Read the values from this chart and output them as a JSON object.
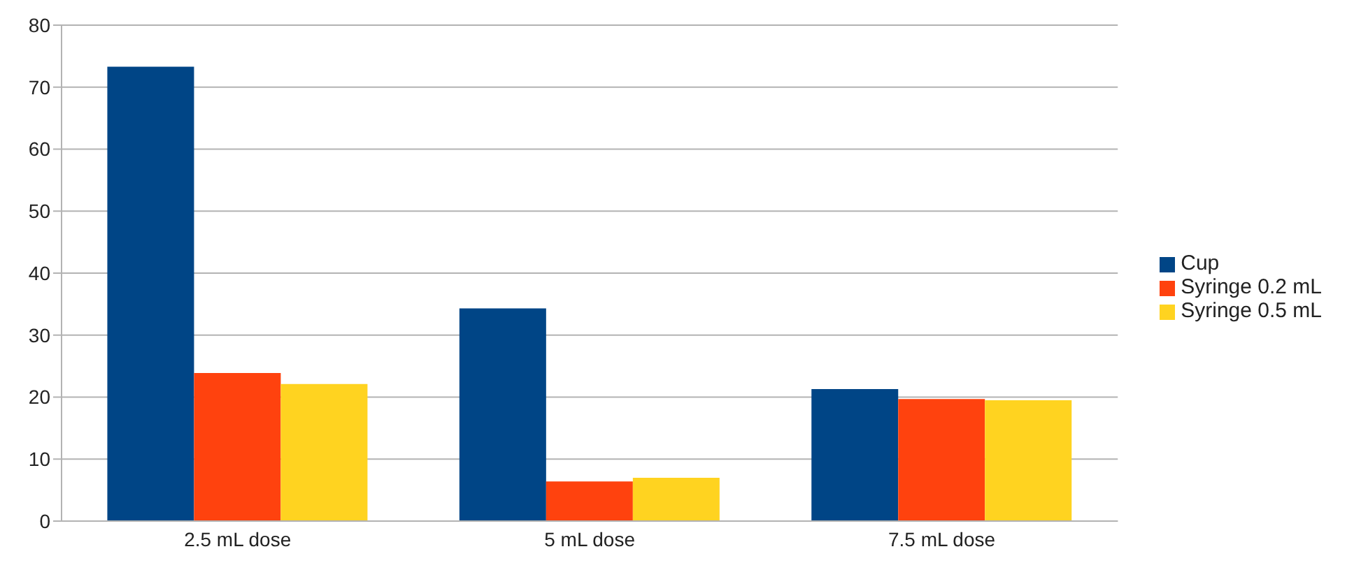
{
  "chart_data": {
    "type": "bar",
    "categories": [
      "2.5 mL dose",
      "5 mL dose",
      "7.5 mL dose"
    ],
    "series": [
      {
        "name": "Cup",
        "color": "#004586",
        "values": [
          73.3,
          34.3,
          21.3
        ]
      },
      {
        "name": "Syringe 0.2 mL",
        "color": "#ff420e",
        "values": [
          23.9,
          6.4,
          19.7
        ]
      },
      {
        "name": "Syringe 0.5 mL",
        "color": "#ffd320",
        "values": [
          22.1,
          7.0,
          19.5
        ]
      }
    ],
    "ylim": [
      0,
      80
    ],
    "yticks": [
      0,
      10,
      20,
      30,
      40,
      50,
      60,
      70,
      80
    ],
    "grid": "y",
    "legend": "right"
  }
}
